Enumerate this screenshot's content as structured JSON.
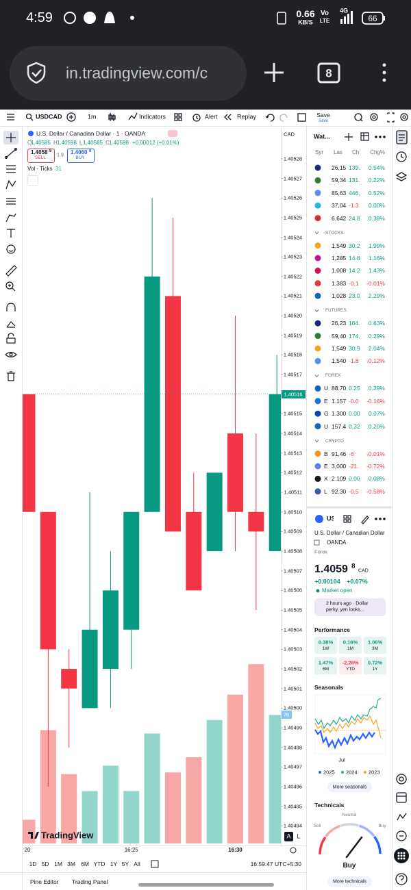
{
  "status_bar": {
    "time": "4:59",
    "speed": "0.66",
    "speed_unit": "KB/S",
    "volte": "Vo",
    "lte": "LTE",
    "network": "4G",
    "battery": "66"
  },
  "browser": {
    "url": "in.tradingview.com/c",
    "tab_count": "8"
  },
  "toolbar": {
    "symbol": "USDCAD",
    "interval": "1m",
    "indicators": "Indicators",
    "alert": "Alert",
    "replay": "Replay",
    "save": "Save",
    "save_hint": "Save"
  },
  "legend": {
    "title": "U.S. Dollar / Canadian Dollar · 1 · OANDA",
    "ohlc": [
      {
        "key": "O",
        "value": "1.40585"
      },
      {
        "key": "H",
        "value": "1.40598"
      },
      {
        "key": "L",
        "value": "1.40585"
      },
      {
        "key": "C",
        "value": "1.40598"
      }
    ],
    "change": "+0.00012 (+0.01%)",
    "sell": {
      "price": "1.4058",
      "pip": "9",
      "label": "SELL"
    },
    "spread": "1.9",
    "buy": {
      "price": "1.4060",
      "pip": "8",
      "label": "BUY"
    },
    "volume_label": "Vol · Ticks",
    "volume_value": "31"
  },
  "chart": {
    "type": "candlestick",
    "currency": "CAD",
    "logo": "TradingView",
    "scale_auto": "A",
    "scale_log": "L",
    "ylim": [
      1.40493,
      1.405296
    ],
    "yticks": [
      1.40528,
      1.40527,
      1.40526,
      1.40525,
      1.40524,
      1.40523,
      1.40522,
      1.40521,
      {
        "value": 1.4052,
        "label": "1.40520"
      },
      1.40519,
      1.40518,
      1.40517,
      1.40516,
      1.40515,
      1.40514,
      1.40513,
      1.40512,
      1.40511,
      {
        "value": 1.4051,
        "label": "1.40510"
      },
      1.40509,
      1.40508,
      1.40507,
      1.40506,
      1.40505,
      1.40504,
      1.40503,
      1.40502,
      1.40501,
      {
        "value": 1.405,
        "label": "1.40500"
      },
      1.40499,
      1.40498,
      1.40497,
      1.40496,
      1.40495,
      1.40494
    ],
    "time_labels": [
      "20",
      "16:25",
      "16:30"
    ],
    "candles": [
      {
        "open": 1.40516,
        "high": 1.40516,
        "low": 1.4051,
        "close": 1.4051,
        "volume": 14
      },
      {
        "open": 1.4051,
        "high": 1.4051,
        "low": 1.40496,
        "close": 1.40503,
        "volume": 67
      },
      {
        "open": 1.40502,
        "high": 1.40503,
        "low": 1.40498,
        "close": 1.40501,
        "volume": 41
      },
      {
        "open": 1.405,
        "high": 1.40511,
        "low": 1.405,
        "close": 1.40504,
        "volume": 31
      },
      {
        "open": 1.40502,
        "high": 1.40508,
        "low": 1.405,
        "close": 1.40506,
        "volume": 46
      },
      {
        "open": 1.40504,
        "high": 1.4051,
        "low": 1.40502,
        "close": 1.4051,
        "volume": 31
      },
      {
        "open": 1.4051,
        "high": 1.40526,
        "low": 1.4051,
        "close": 1.40522,
        "volume": 65
      },
      {
        "open": 1.40521,
        "high": 1.40525,
        "low": 1.40509,
        "close": 1.40509,
        "volume": 42
      },
      {
        "open": 1.4051,
        "high": 1.40512,
        "low": 1.40506,
        "close": 1.40506,
        "volume": 51
      },
      {
        "open": 1.40508,
        "high": 1.40512,
        "low": 1.40508,
        "close": 1.40512,
        "volume": 73
      },
      {
        "open": 1.40514,
        "high": 1.4052,
        "low": 1.40508,
        "close": 1.4051,
        "volume": 88
      },
      {
        "open": 1.4051,
        "high": 1.40514,
        "low": 1.40505,
        "close": 1.40509,
        "volume": 106
      },
      {
        "open": 1.40508,
        "high": 1.40518,
        "low": 1.40508,
        "close": 1.40516,
        "volume": 76
      }
    ],
    "up_color": "#089981",
    "down_color": "#f23645",
    "up_volume_color": "#92d5ca",
    "down_volume_color": "#f7a8a6"
  },
  "ranges": [
    "1D",
    "5D",
    "1M",
    "3M",
    "6M",
    "YTD",
    "1Y",
    "5Y",
    "All"
  ],
  "clock": "16:59:47 UTC+5:30",
  "bottom_tabs": [
    "Pine Editor",
    "Trading Panel"
  ],
  "watchlist": {
    "title": "Wat...",
    "columns": [
      "Syr",
      "Las",
      "Ch",
      "Chg%"
    ],
    "top_rows": [
      {
        "last": "26,15",
        "change": "139.",
        "change_pct": "0.54%"
      },
      {
        "last": "59,34",
        "change": "131.",
        "change_pct": "0.22%"
      },
      {
        "last": "85,63",
        "change": "446.",
        "change_pct": "0.52%"
      },
      {
        "last": "37,04",
        "change": "-1.3",
        "change_pct": "0.00%"
      },
      {
        "last": "6,642",
        "change": "24.8",
        "change_pct": "0.38%"
      }
    ],
    "sections": [
      {
        "name": "STOCKS",
        "rows": [
          {
            "last": "1,549",
            "change": "30.2",
            "change_pct": "1.99%"
          },
          {
            "last": "1,285",
            "change": "14.8",
            "change_pct": "1.16%"
          },
          {
            "last": "1,008",
            "change": "14.2",
            "change_pct": "1.43%"
          },
          {
            "last": "1,383",
            "change": "-0.1",
            "change_pct": "-0.01%"
          },
          {
            "last": "1,028",
            "change": "23.0",
            "change_pct": "2.29%"
          }
        ]
      },
      {
        "name": "FUTURES",
        "rows": [
          {
            "last": "26,23",
            "change": "164.",
            "change_pct": "0.63%"
          },
          {
            "last": "59,40",
            "change": "174.",
            "change_pct": "0.29%"
          },
          {
            "last": "1,549",
            "change": "30.9",
            "change_pct": "2.04%"
          },
          {
            "last": "1,540",
            "change": "-1.8",
            "change_pct": "-0.12%"
          }
        ]
      },
      {
        "name": "FOREX",
        "rows": [
          {
            "symbol": "U",
            "last": "88.70",
            "change": "0.25",
            "change_pct": "0.29%"
          },
          {
            "symbol": "E",
            "last": "1.157",
            "change": "-0.0",
            "change_pct": "-0.16%"
          },
          {
            "symbol": "G",
            "last": "1.300",
            "change": "0.00",
            "change_pct": "0.07%"
          },
          {
            "symbol": "U",
            "last": "157.4",
            "change": "0.32",
            "change_pct": "0.20%"
          }
        ]
      },
      {
        "name": "CRYPTO",
        "rows": [
          {
            "symbol": "B",
            "last": "91,46",
            "change": "-6",
            "change_pct": "-0.01%"
          },
          {
            "symbol": "E",
            "last": "3,000",
            "change": "-21.",
            "change_pct": "-0.72%"
          },
          {
            "symbol": "X",
            "last": "2.109",
            "change": "0.00",
            "change_pct": "0.08%"
          },
          {
            "symbol": "L",
            "last": "92.30",
            "change": "-0.5",
            "change_pct": "-0.58%"
          }
        ]
      }
    ]
  },
  "details": {
    "symbol": "US",
    "name": "U.S. Dollar / Canadian Dollar",
    "exchange": "OANDA",
    "type": "Forex",
    "price": "1.4059",
    "price_pip": "8",
    "currency": "CAD",
    "change": "+0.00104",
    "change_pct": "+0.07%",
    "status": "Market open",
    "news": "2 hours ago · Dollar perky, yen looks...",
    "performance_title": "Performance",
    "performance": [
      {
        "value": "0.38%",
        "period": "1W"
      },
      {
        "value": "0.16%",
        "period": "1M"
      },
      {
        "value": "1.06%",
        "period": "3M"
      },
      {
        "value": "1.47%",
        "period": "6M"
      },
      {
        "value": "-2.28%",
        "period": "YTD"
      },
      {
        "value": "0.72%",
        "period": "1Y"
      }
    ],
    "seasonals_title": "Seasonals",
    "seasonals_month": "Jul",
    "seasonals_years": [
      {
        "name": "2025",
        "color": "#2962ff"
      },
      {
        "name": "2024",
        "color": "#22ab94"
      },
      {
        "name": "2023",
        "color": "#f5a623"
      }
    ],
    "more_seasonals": "More seasonals",
    "technicals_title": "Technicals",
    "gauge_neutral": "Neutral",
    "gauge_sell": "Sell",
    "gauge_buy": "Buy",
    "technicals_rating": "Buy",
    "more_technicals": "More technicals"
  }
}
